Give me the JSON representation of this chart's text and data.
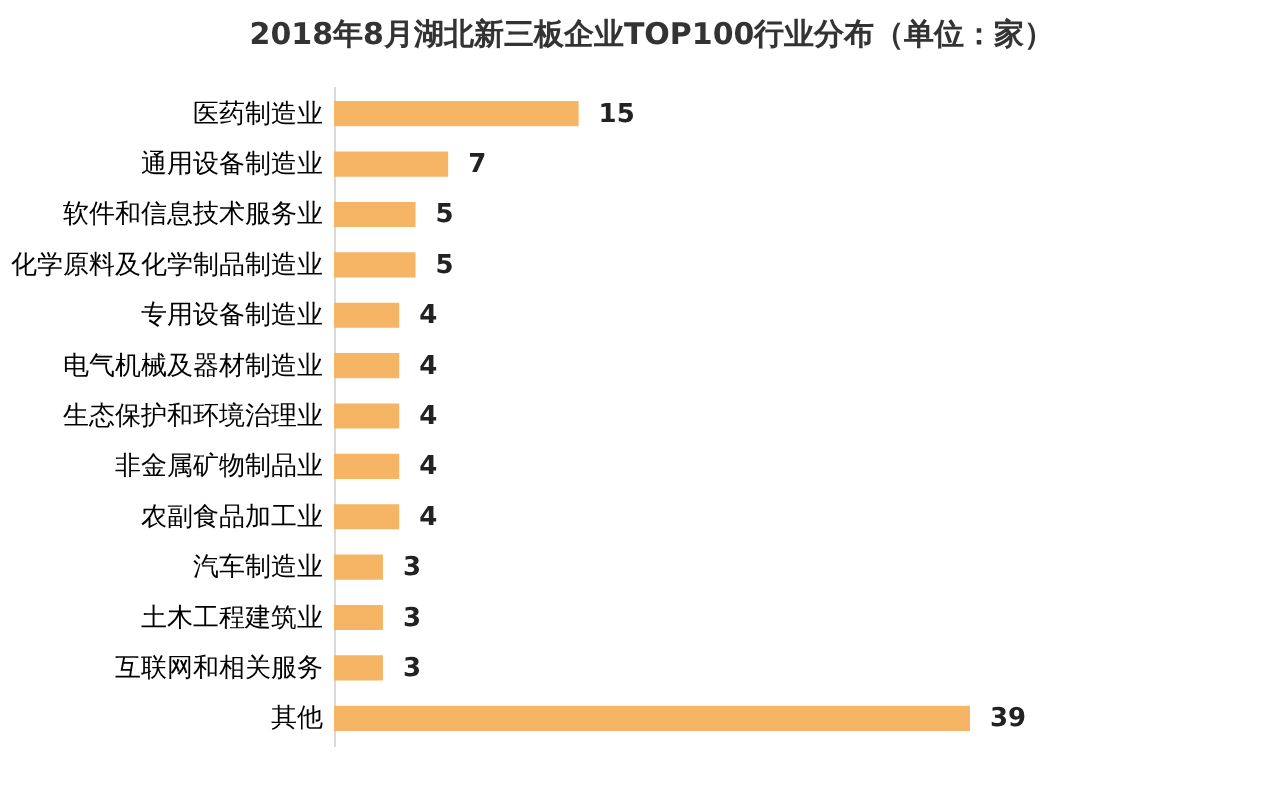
{
  "chart_data": {
    "type": "bar",
    "orientation": "horizontal",
    "title": "2018年8月湖北新三板企业TOP100行业分布（单位：家）",
    "categories": [
      "医药制造业",
      "通用设备制造业",
      "软件和信息技术服务业",
      "化学原料及化学制品制造业",
      "专用设备制造业",
      "电气机械及器材制造业",
      "生态保护和环境治理业",
      "非金属矿物制品业",
      "农副食品加工业",
      "汽车制造业",
      "土木工程建筑业",
      "互联网和相关服务",
      "其他"
    ],
    "values": [
      15,
      7,
      5,
      5,
      4,
      4,
      4,
      4,
      4,
      3,
      3,
      3,
      39
    ],
    "color": "#f5b565",
    "data_labels": true
  }
}
